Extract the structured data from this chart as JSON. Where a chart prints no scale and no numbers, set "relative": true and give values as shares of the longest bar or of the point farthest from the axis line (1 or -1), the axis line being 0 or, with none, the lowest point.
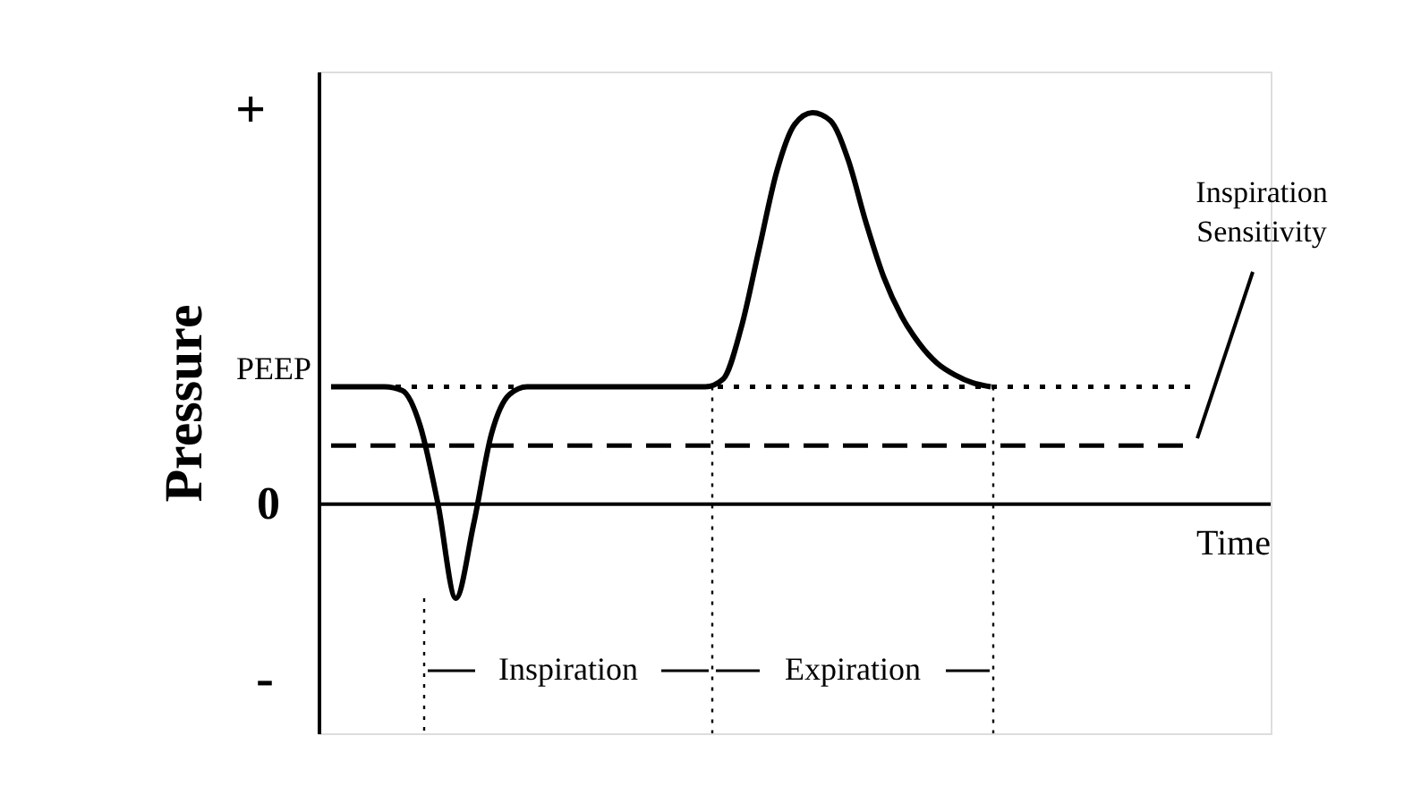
{
  "chart_data": {
    "type": "line",
    "relative": true,
    "ylabel": "Pressure",
    "xlabel": "Time",
    "categories": [
      null,
      null,
      null,
      null,
      null,
      null,
      null,
      null,
      null,
      null,
      null,
      null,
      null,
      null,
      null,
      null,
      null,
      null,
      null,
      null,
      null,
      null,
      null,
      null,
      null,
      null,
      null,
      null,
      null,
      null,
      null,
      null,
      null,
      null,
      null,
      null,
      null,
      null,
      null,
      null,
      null,
      null,
      null,
      null,
      null,
      null,
      null,
      null,
      null,
      null,
      null,
      null,
      null
    ],
    "series": [
      {
        "color": "#000000",
        "values": [
          0.3,
          0.3,
          0.3,
          0.3,
          0.29,
          0.2,
          0.0,
          -0.24,
          -0.05,
          0.18,
          0.28,
          0.3,
          0.3,
          0.3,
          0.3,
          0.3,
          0.3,
          0.3,
          0.3,
          0.3,
          0.3,
          0.3,
          0.32,
          0.45,
          0.65,
          0.85,
          0.97,
          1.0,
          0.98,
          0.88,
          0.72,
          0.58,
          0.48,
          0.41,
          0.36,
          0.33,
          0.31,
          0.3,
          null,
          null,
          null,
          null,
          null,
          null,
          null,
          null,
          null,
          null,
          null,
          null,
          null,
          null,
          null
        ]
      }
    ],
    "ref_lines": [
      {
        "axis": "y",
        "value": 0.3,
        "label": "PEEP",
        "line_style": "dotted",
        "color": "#000000"
      },
      {
        "axis": "y",
        "value": 0.15,
        "label": "Inspiration Sensitivity",
        "line_style": "dashed",
        "color": "#000000"
      }
    ],
    "annotations": [
      "+",
      "0",
      "-",
      "Inspiration",
      "Expiration"
    ],
    "line_style": "solid",
    "marker": "none",
    "grid": false
  }
}
